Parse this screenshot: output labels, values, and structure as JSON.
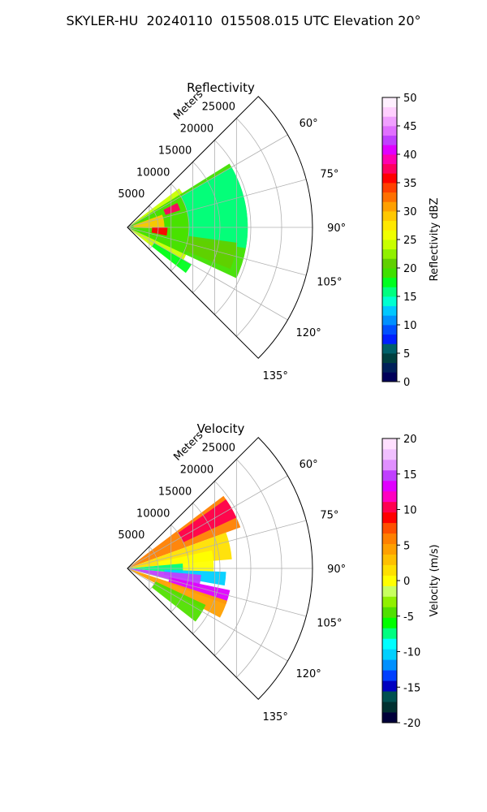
{
  "figure_title": "SKYLER-HU  20240110  015508.015 UTC Elevation 20°",
  "colors": {
    "reflectivity_scale": [
      "#00005a",
      "#00205a",
      "#004040",
      "#00606a",
      "#0020ff",
      "#0050ff",
      "#0090ff",
      "#00c8ff",
      "#00ffd0",
      "#00ff80",
      "#00ff20",
      "#40e000",
      "#60d000",
      "#90f000",
      "#c8ff00",
      "#f0ff00",
      "#ffe800",
      "#ffc800",
      "#ffa000",
      "#ff7000",
      "#ff4000",
      "#ff0000",
      "#ff0060",
      "#ff00b0",
      "#e000ff",
      "#c040ff",
      "#e070ff",
      "#f0a0ff",
      "#ffd0ff",
      "#fff0ff"
    ],
    "velocity_scale": [
      "#00003a",
      "#003030",
      "#005050",
      "#0000c0",
      "#0040ff",
      "#0090ff",
      "#00d0ff",
      "#00ffff",
      "#00ff80",
      "#00ff00",
      "#50e000",
      "#90f000",
      "#c8ff60",
      "#ffff00",
      "#ffe000",
      "#ffc000",
      "#ffa000",
      "#ff8000",
      "#ff5000",
      "#ff0000",
      "#ff0050",
      "#ff00c0",
      "#e000ff",
      "#c040ff",
      "#e090ff",
      "#f0c0ff",
      "#ffe0ff"
    ]
  },
  "chart_data": [
    {
      "type": "heatmap",
      "title": "Reflectivity",
      "projection": "polar sector, 0° at top, clockwise",
      "azimuth_range_deg": [
        45,
        135
      ],
      "azimuth_ticks": [
        "60°",
        "75°",
        "90°",
        "105°",
        "120°",
        "135°"
      ],
      "azimuth_tick_values": [
        60,
        75,
        90,
        105,
        120,
        135
      ],
      "range_label": "Meters",
      "range_ticks": [
        "5000",
        "10000",
        "15000",
        "20000",
        "25000"
      ],
      "range_tick_values": [
        5000,
        10000,
        15000,
        20000,
        25000
      ],
      "range_max": 30000,
      "colorbar": {
        "label": "Reflectivity dBZ",
        "min": 0,
        "max": 50,
        "ticks": [
          "0",
          "5",
          "10",
          "15",
          "20",
          "25",
          "30",
          "35",
          "40",
          "45",
          "50"
        ]
      },
      "grid": true,
      "echo_sectors": [
        {
          "az": [
            53,
            128
          ],
          "r": [
            0,
            10500
          ],
          "value": 24
        },
        {
          "az": [
            58,
            115
          ],
          "r": [
            0,
            19500
          ],
          "value": 19
        },
        {
          "az": [
            60,
            100
          ],
          "r": [
            10000,
            19500
          ],
          "value": 16
        },
        {
          "az": [
            70,
            92
          ],
          "r": [
            1000,
            6000
          ],
          "value": 29
        },
        {
          "az": [
            64,
            72
          ],
          "r": [
            6500,
            9000
          ],
          "value": 37
        },
        {
          "az": [
            90,
            102
          ],
          "r": [
            4000,
            6500
          ],
          "value": 36
        },
        {
          "az": [
            98,
            112
          ],
          "r": [
            10000,
            18000
          ],
          "value": 20
        },
        {
          "az": [
            120,
            128
          ],
          "r": [
            5000,
            12000
          ],
          "value": 17
        }
      ]
    },
    {
      "type": "heatmap",
      "title": "Velocity",
      "projection": "polar sector, 0° at top, clockwise",
      "azimuth_range_deg": [
        45,
        135
      ],
      "azimuth_ticks": [
        "60°",
        "75°",
        "90°",
        "105°",
        "120°",
        "135°"
      ],
      "azimuth_tick_values": [
        60,
        75,
        90,
        105,
        120,
        135
      ],
      "range_label": "Meters",
      "range_ticks": [
        "5000",
        "10000",
        "15000",
        "20000",
        "25000"
      ],
      "range_tick_values": [
        5000,
        10000,
        15000,
        20000,
        25000
      ],
      "range_max": 30000,
      "colorbar": {
        "label": "Velocity (m/s)",
        "min": -20,
        "max": 20,
        "ticks": [
          "-20",
          "-15",
          "-10",
          "-5",
          "0",
          "5",
          "10",
          "15",
          "20"
        ]
      },
      "grid": true,
      "echo_sectors": [
        {
          "az": [
            53,
            70
          ],
          "r": [
            0,
            19500
          ],
          "value": 6
        },
        {
          "az": [
            55,
            65
          ],
          "r": [
            10000,
            19500
          ],
          "value": 10
        },
        {
          "az": [
            70,
            85
          ],
          "r": [
            0,
            17000
          ],
          "value": 1
        },
        {
          "az": [
            78,
            92
          ],
          "r": [
            5000,
            14000
          ],
          "value": 0
        },
        {
          "az": [
            85,
            95
          ],
          "r": [
            0,
            9000
          ],
          "value": -7
        },
        {
          "az": [
            92,
            100
          ],
          "r": [
            6000,
            16000
          ],
          "value": -11
        },
        {
          "az": [
            95,
            105
          ],
          "r": [
            0,
            12000
          ],
          "value": 15
        },
        {
          "az": [
            102,
            110
          ],
          "r": [
            7000,
            17000
          ],
          "value": 14
        },
        {
          "az": [
            108,
            118
          ],
          "r": [
            0,
            17000
          ],
          "value": 5
        },
        {
          "az": [
            115,
            128
          ],
          "r": [
            5000,
            14000
          ],
          "value": -4
        }
      ]
    }
  ]
}
